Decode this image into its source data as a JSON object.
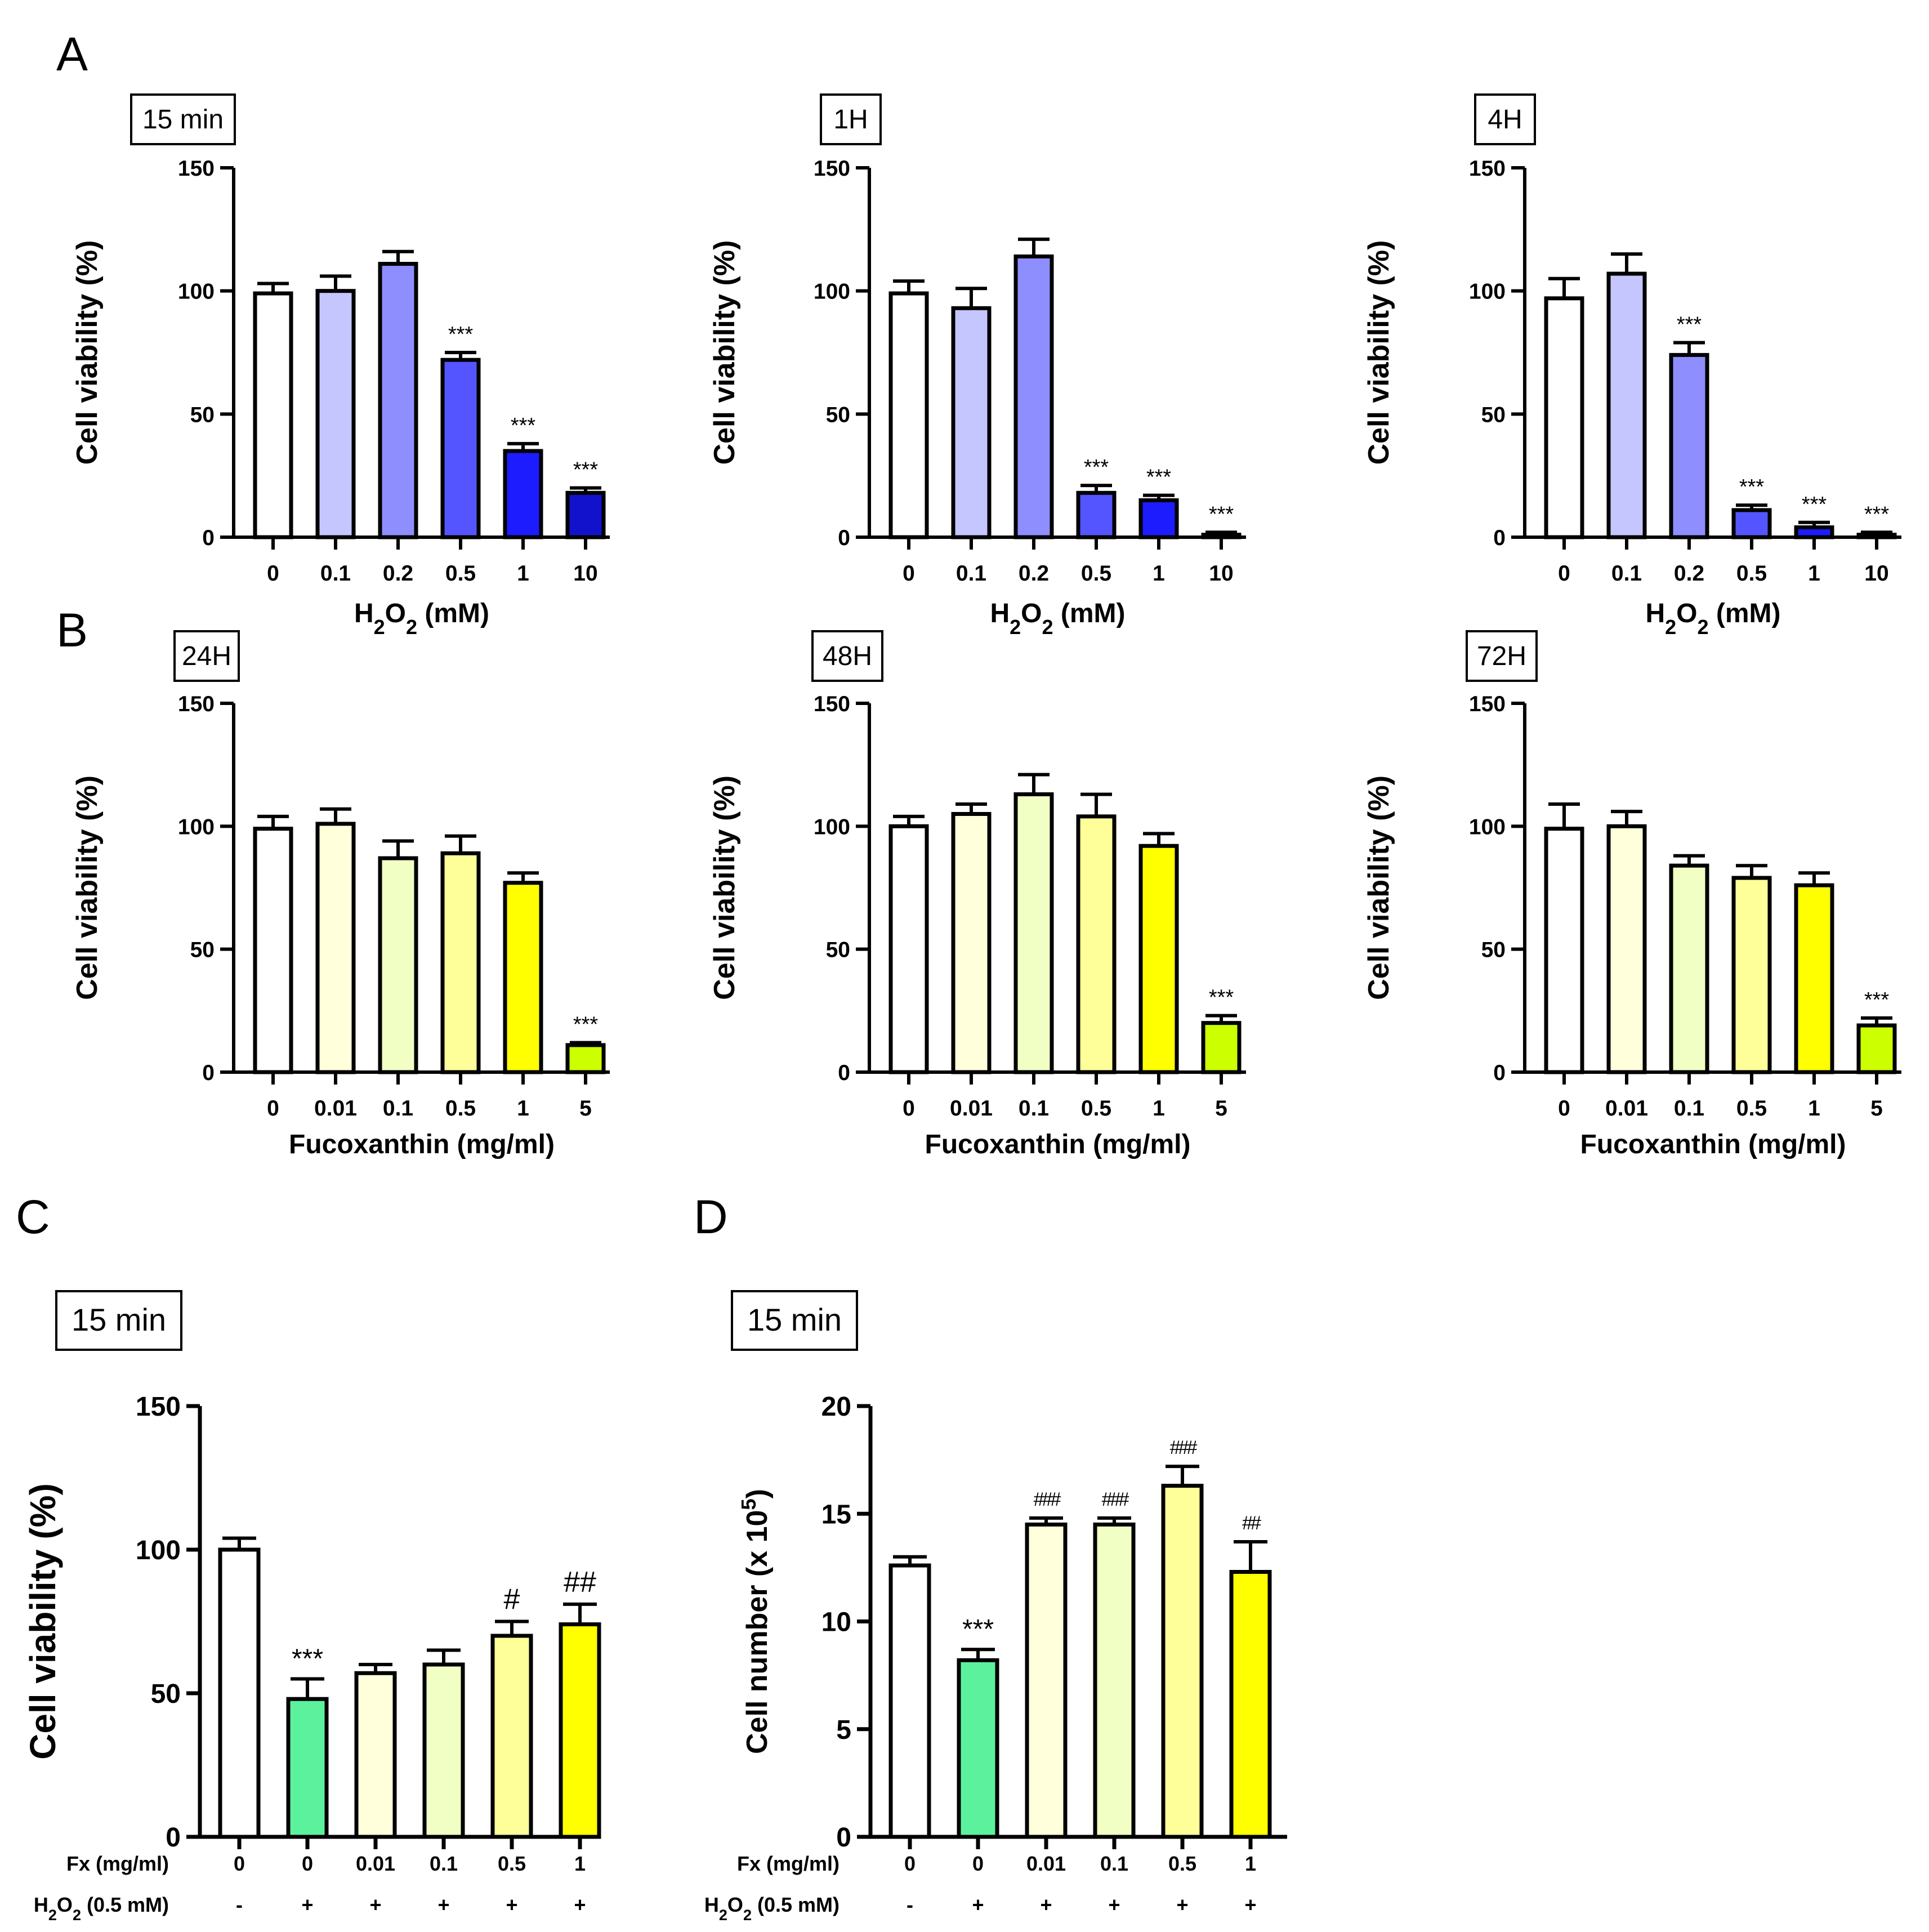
{
  "panel_letters": [
    "A",
    "B",
    "C",
    "D"
  ],
  "chart_data": [
    {
      "id": "A1",
      "type": "bar",
      "panel": "A",
      "timepoint": "15 min",
      "categories": [
        "0",
        "0.1",
        "0.2",
        "0.5",
        "1",
        "10"
      ],
      "values": [
        99,
        100,
        111,
        72,
        35,
        18
      ],
      "errors": [
        4,
        6,
        5,
        3,
        3,
        2
      ],
      "significance": [
        "",
        "",
        "",
        "***",
        "***",
        "***"
      ],
      "colors": [
        "#ffffff",
        "#c6c6ff",
        "#8e8eff",
        "#5555ff",
        "#1c1cff",
        "#1212cc"
      ],
      "ylabel": "Cell viability (%)",
      "xlabel": "H2O2 (mM)",
      "ylim": [
        0,
        150
      ],
      "yticks": [
        0,
        50,
        100,
        150
      ]
    },
    {
      "id": "A2",
      "type": "bar",
      "panel": "A",
      "timepoint": "1H",
      "categories": [
        "0",
        "0.1",
        "0.2",
        "0.5",
        "1",
        "10"
      ],
      "values": [
        99,
        93,
        114,
        18,
        15,
        1
      ],
      "errors": [
        5,
        8,
        7,
        3,
        2,
        1
      ],
      "significance": [
        "",
        "",
        "",
        "***",
        "***",
        "***"
      ],
      "colors": [
        "#ffffff",
        "#c6c6ff",
        "#8e8eff",
        "#5555ff",
        "#1c1cff",
        "#1212cc"
      ],
      "ylabel": "Cell viability (%)",
      "xlabel": "H2O2 (mM)",
      "ylim": [
        0,
        150
      ],
      "yticks": [
        0,
        50,
        100,
        150
      ]
    },
    {
      "id": "A3",
      "type": "bar",
      "panel": "A",
      "timepoint": "4H",
      "categories": [
        "0",
        "0.1",
        "0.2",
        "0.5",
        "1",
        "10"
      ],
      "values": [
        97,
        107,
        74,
        11,
        4,
        1
      ],
      "errors": [
        8,
        8,
        5,
        2,
        2,
        1
      ],
      "significance": [
        "",
        "",
        "***",
        "***",
        "***",
        "***"
      ],
      "colors": [
        "#ffffff",
        "#c6c6ff",
        "#8e8eff",
        "#5555ff",
        "#1c1cff",
        "#1212cc"
      ],
      "ylabel": "Cell viability (%)",
      "xlabel": "H2O2 (mM)",
      "ylim": [
        0,
        150
      ],
      "yticks": [
        0,
        50,
        100,
        150
      ]
    },
    {
      "id": "B1",
      "type": "bar",
      "panel": "B",
      "timepoint": "24H",
      "categories": [
        "0",
        "0.01",
        "0.1",
        "0.5",
        "1",
        "5"
      ],
      "values": [
        99,
        101,
        87,
        89,
        77,
        11
      ],
      "errors": [
        5,
        6,
        7,
        7,
        4,
        1
      ],
      "significance": [
        "",
        "",
        "",
        "",
        "",
        "***"
      ],
      "colors": [
        "#ffffff",
        "#ffffdc",
        "#f2ffc4",
        "#ffff9a",
        "#ffff00",
        "#ccff00"
      ],
      "ylabel": "Cell viability (%)",
      "xlabel": "Fucoxanthin (mg/ml)",
      "ylim": [
        0,
        150
      ],
      "yticks": [
        0,
        50,
        100,
        150
      ]
    },
    {
      "id": "B2",
      "type": "bar",
      "panel": "B",
      "timepoint": "48H",
      "categories": [
        "0",
        "0.01",
        "0.1",
        "0.5",
        "1",
        "5"
      ],
      "values": [
        100,
        105,
        113,
        104,
        92,
        20
      ],
      "errors": [
        4,
        4,
        8,
        9,
        5,
        3
      ],
      "significance": [
        "",
        "",
        "",
        "",
        "",
        "***"
      ],
      "colors": [
        "#ffffff",
        "#ffffdc",
        "#f2ffc4",
        "#ffff9a",
        "#ffff00",
        "#ccff00"
      ],
      "ylabel": "Cell viability (%)",
      "xlabel": "Fucoxanthin (mg/ml)",
      "ylim": [
        0,
        150
      ],
      "yticks": [
        0,
        50,
        100,
        150
      ]
    },
    {
      "id": "B3",
      "type": "bar",
      "panel": "B",
      "timepoint": "72H",
      "categories": [
        "0",
        "0.01",
        "0.1",
        "0.5",
        "1",
        "5"
      ],
      "values": [
        99,
        100,
        84,
        79,
        76,
        19
      ],
      "errors": [
        10,
        6,
        4,
        5,
        5,
        3
      ],
      "significance": [
        "",
        "",
        "",
        "",
        "",
        "***"
      ],
      "colors": [
        "#ffffff",
        "#ffffdc",
        "#f2ffc4",
        "#ffff9a",
        "#ffff00",
        "#ccff00"
      ],
      "ylabel": "Cell viability (%)",
      "xlabel": "Fucoxanthin (mg/ml)",
      "ylim": [
        0,
        150
      ],
      "yticks": [
        0,
        50,
        100,
        150
      ]
    },
    {
      "id": "C",
      "type": "bar",
      "panel": "C",
      "timepoint": "15 min",
      "categories": [
        "0",
        "0",
        "0.01",
        "0.1",
        "0.5",
        "1"
      ],
      "values": [
        100,
        48,
        57,
        60,
        70,
        74
      ],
      "errors": [
        4,
        7,
        3,
        5,
        5,
        7
      ],
      "significance": [
        "",
        "***",
        "",
        "",
        "#",
        "##"
      ],
      "colors": [
        "#ffffff",
        "#5cf29d",
        "#ffffdc",
        "#f2ffc4",
        "#ffff9a",
        "#ffff00"
      ],
      "ylabel": "Cell viability (%)",
      "row_labels": [
        "Fx (mg/ml)",
        "H2O2 (0.5 mM)"
      ],
      "fx_row": [
        "0",
        "0",
        "0.01",
        "0.1",
        "0.5",
        "1"
      ],
      "h2o2_row": [
        "-",
        "+",
        "+",
        "+",
        "+",
        "+"
      ],
      "ylim": [
        0,
        150
      ],
      "yticks": [
        0,
        50,
        100,
        150
      ]
    },
    {
      "id": "D",
      "type": "bar",
      "panel": "D",
      "timepoint": "15 min",
      "categories": [
        "0",
        "0",
        "0.01",
        "0.1",
        "0.5",
        "1"
      ],
      "values": [
        12.6,
        8.2,
        14.5,
        14.5,
        16.3,
        12.3
      ],
      "errors": [
        0.4,
        0.5,
        0.3,
        0.3,
        0.9,
        1.4
      ],
      "significance": [
        "",
        "***",
        "###",
        "###",
        "###",
        "##"
      ],
      "colors": [
        "#ffffff",
        "#5cf29d",
        "#ffffdc",
        "#f2ffc4",
        "#ffff9a",
        "#ffff00"
      ],
      "ylabel": "Cell number (x 10^5)",
      "row_labels": [
        "Fx (mg/ml)",
        "H2O2 (0.5 mM)"
      ],
      "fx_row": [
        "0",
        "0",
        "0.01",
        "0.1",
        "0.5",
        "1"
      ],
      "h2o2_row": [
        "-",
        "+",
        "+",
        "+",
        "+",
        "+"
      ],
      "ylim": [
        0,
        20
      ],
      "yticks": [
        0,
        5,
        10,
        15,
        20
      ]
    }
  ]
}
